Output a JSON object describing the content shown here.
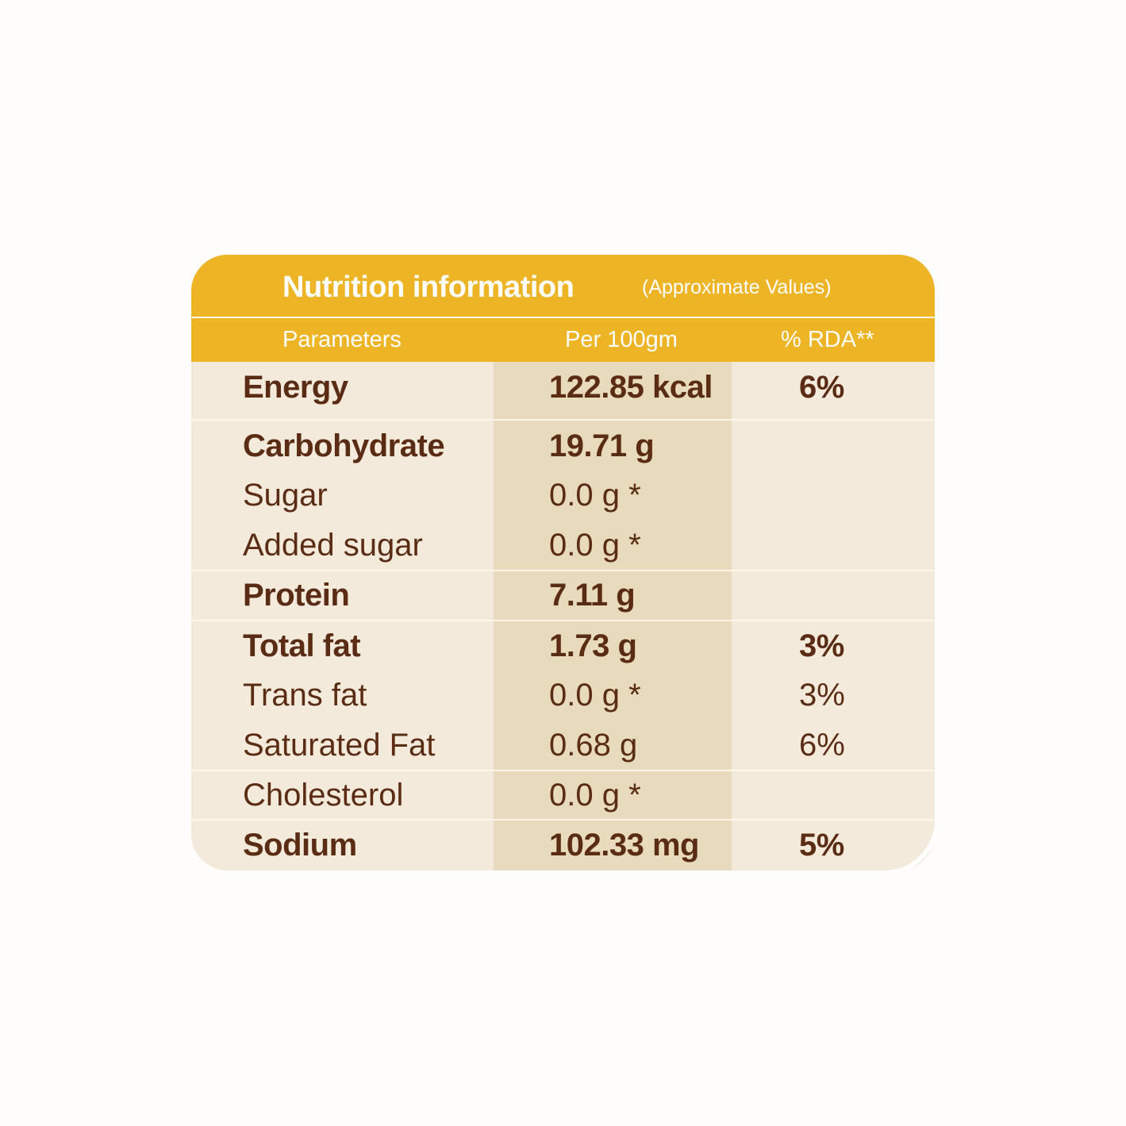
{
  "title": "Nutrition information",
  "subtitle": "(Approximate Values)",
  "columns": [
    "Parameters",
    "Per 100gm",
    "% RDA**"
  ],
  "rows": [
    {
      "name": "Energy",
      "value": "122.85 kcal",
      "rda": "6%",
      "bold": true
    },
    {
      "name": "Carbohydrate",
      "value": "19.71 g",
      "rda": "",
      "bold": true
    },
    {
      "name": "Sugar",
      "value": "0.0 g *",
      "rda": "",
      "bold": false
    },
    {
      "name": "Added sugar",
      "value": "0.0 g *",
      "rda": "",
      "bold": false
    },
    {
      "name": "Protein",
      "value": "7.11 g",
      "rda": "",
      "bold": true
    },
    {
      "name": "Total fat",
      "value": "1.73 g",
      "rda": "3%",
      "bold": true
    },
    {
      "name": "Trans fat",
      "value": "0.0 g *",
      "rda": "3%",
      "bold": false
    },
    {
      "name": "Saturated Fat",
      "value": "0.68 g",
      "rda": "6%",
      "bold": false
    },
    {
      "name": "Cholesterol",
      "value": "0.0 g *",
      "rda": "",
      "bold": false
    },
    {
      "name": "Sodium",
      "value": "102.33 mg",
      "rda": "5%",
      "bold": true
    }
  ],
  "colors": {
    "header": "#edb425",
    "body": "#f3eadb",
    "value_column": "#e8dbbd",
    "text": "#5b2c14"
  }
}
